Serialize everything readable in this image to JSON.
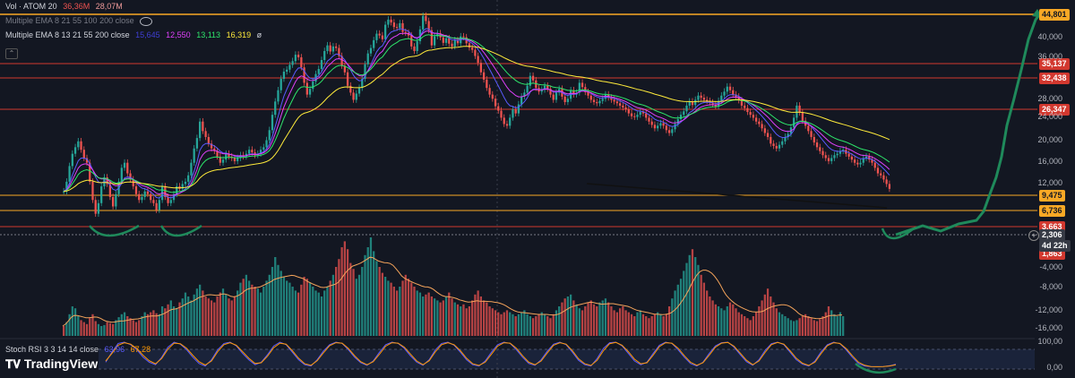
{
  "legend": {
    "vol_label": "Vol · ATOM 20",
    "vol_v1": "36,36M",
    "vol_v2": "28,07M",
    "ema1_label": "Multiple EMA 8 21 55 100 200 close",
    "ema2_label": "Multiple EMA 8 13 21 55 200 close",
    "ema2_v1": "15,645",
    "ema2_v2": "12,550",
    "ema2_v3": "13,113",
    "ema2_v4": "16,319",
    "ema2_v5": "ø",
    "stoch_label": "Stoch RSI 3 3 14 14 close",
    "stoch_k": "63,96",
    "stoch_d": "67,28"
  },
  "brand": "TradingView",
  "circle_button": "+",
  "colors": {
    "up": "#26a69a",
    "down": "#ef5350",
    "ema_fast": "#5b5bff",
    "ema_mid": "#e040fb",
    "ema_slow": "#2ee66b",
    "ema_long": "#ffeb3b",
    "hline_red": "#d2382f",
    "hline_orange": "#f9a825",
    "projection": "#1f8a5b"
  },
  "price_levels": [
    {
      "value": "44,801",
      "color": "#f9a825",
      "text_color": "#131722",
      "kind": "orange"
    },
    {
      "value": "35,137",
      "color": "#d2382f",
      "text_color": "#ffffff",
      "kind": "red"
    },
    {
      "value": "32,438",
      "color": "#d2382f",
      "text_color": "#ffffff",
      "kind": "red"
    },
    {
      "value": "26,347",
      "color": "#d2382f",
      "text_color": "#ffffff",
      "kind": "red"
    },
    {
      "value": "9,475",
      "color": "#f9a825",
      "text_color": "#131722",
      "kind": "orange"
    },
    {
      "value": "6,736",
      "color": "#f9a825",
      "text_color": "#131722",
      "kind": "orange"
    },
    {
      "value": "3,663",
      "color": "#d2382f",
      "text_color": "#ffffff",
      "kind": "red"
    },
    {
      "value": "2,306",
      "color": "#363a45",
      "text_color": "#ffffff",
      "kind": "current"
    },
    {
      "value": "1,863",
      "color": "#d2382f",
      "text_color": "#ffffff",
      "kind": "red"
    }
  ],
  "countdown": "4d 22h",
  "price_ticks": [
    "40,000",
    "36,000",
    "28,000",
    "24,000",
    "20,000",
    "16,000",
    "12,000"
  ],
  "volume_ticks": [
    "-4,000",
    "-8,000",
    "-12,000",
    "-16,000"
  ],
  "rsi_ticks": [
    "100,00",
    "0,00"
  ],
  "chart_data": {
    "type": "line",
    "title": "ATOM",
    "price_series": [
      2.2,
      2.6,
      3.4,
      4.2,
      4.7,
      5.2,
      4.5,
      3.9,
      3.6,
      2.6,
      1.9,
      1.5,
      1.8,
      2.4,
      2.8,
      2.5,
      2.0,
      1.7,
      2.1,
      2.6,
      3.3,
      3.6,
      3.0,
      2.7,
      2.4,
      2.1,
      1.9,
      2.0,
      2.2,
      2.1,
      1.9,
      1.8,
      1.6,
      1.9,
      2.4,
      2.0,
      1.8,
      1.9,
      2.1,
      2.4,
      2.3,
      2.5,
      2.6,
      2.9,
      3.6,
      4.6,
      5.5,
      7.3,
      6.2,
      5.6,
      5.0,
      4.6,
      4.4,
      4.0,
      3.6,
      3.8,
      4.2,
      4.0,
      3.9,
      3.7,
      3.9,
      4.1,
      4.0,
      4.2,
      4.5,
      4.3,
      4.1,
      4.2,
      4.5,
      4.7,
      5.3,
      6.3,
      8.2,
      10.3,
      12.5,
      15.2,
      17.2,
      17.8,
      19.3,
      20.6,
      23.0,
      22.0,
      18.5,
      14.2,
      11.6,
      12.8,
      14.5,
      16.5,
      18.0,
      21.0,
      24.5,
      27.0,
      24.3,
      26.5,
      25.8,
      22.5,
      19.0,
      17.0,
      13.5,
      12.0,
      10.6,
      11.8,
      13.0,
      15.2,
      19.5,
      23.5,
      25.8,
      29.5,
      33.0,
      32.0,
      30.0,
      38.5,
      42.0,
      40.0,
      37.0,
      36.5,
      39.5,
      34.0,
      33.5,
      32.0,
      26.5,
      24.5,
      29.0,
      35.5,
      44.8,
      41.0,
      35.0,
      27.0,
      31.5,
      33.2,
      31.0,
      28.2,
      30.5,
      27.8,
      26.5,
      29.5,
      28.0,
      31.5,
      31.0,
      28.0,
      26.0,
      25.0,
      22.5,
      20.0,
      17.0,
      15.0,
      13.0,
      11.6,
      10.8,
      9.5,
      8.8,
      7.8,
      7.0,
      6.8,
      7.8,
      9.0,
      8.4,
      9.8,
      11.2,
      12.0,
      13.5,
      16.0,
      14.8,
      13.0,
      12.2,
      12.6,
      13.5,
      12.8,
      11.6,
      10.6,
      12.0,
      12.8,
      11.2,
      10.2,
      10.8,
      12.5,
      11.6,
      12.0,
      14.2,
      13.2,
      12.1,
      11.4,
      10.6,
      10.2,
      10.0,
      10.4,
      10.8,
      11.6,
      11.0,
      10.6,
      10.3,
      10.0,
      9.6,
      9.3,
      9.0,
      8.4,
      8.0,
      7.9,
      8.2,
      8.6,
      8.4,
      7.8,
      7.3,
      6.9,
      6.5,
      6.8,
      7.1,
      6.8,
      6.3,
      6.0,
      6.4,
      7.0,
      7.6,
      8.2,
      8.7,
      9.6,
      10.3,
      9.7,
      10.6,
      11.4,
      11.0,
      10.6,
      10.4,
      10.1,
      9.8,
      9.5,
      10.4,
      11.4,
      12.2,
      13.3,
      12.5,
      11.6,
      11.2,
      10.5,
      9.6,
      9.2,
      8.6,
      8.2,
      7.8,
      7.3,
      7.0,
      6.5,
      6.0,
      5.6,
      5.0,
      4.8,
      4.6,
      4.9,
      5.2,
      5.6,
      5.9,
      6.6,
      7.8,
      9.6,
      8.5,
      7.4,
      6.8,
      6.2,
      5.6,
      5.1,
      4.7,
      4.4,
      4.1,
      3.9,
      3.7,
      3.9,
      4.1,
      4.2,
      4.4,
      4.5,
      4.2,
      4.0,
      3.8,
      3.6,
      3.5,
      3.6,
      3.9,
      4.0,
      3.8,
      3.6,
      3.3,
      3.0,
      2.9,
      2.7,
      2.5,
      2.3
    ],
    "volume_series": [
      0.1,
      0.14,
      0.22,
      0.3,
      0.28,
      0.2,
      0.16,
      0.14,
      0.12,
      0.18,
      0.22,
      0.15,
      0.12,
      0.1,
      0.11,
      0.14,
      0.13,
      0.12,
      0.16,
      0.19,
      0.22,
      0.24,
      0.2,
      0.18,
      0.16,
      0.14,
      0.16,
      0.2,
      0.24,
      0.22,
      0.24,
      0.26,
      0.23,
      0.22,
      0.3,
      0.28,
      0.32,
      0.36,
      0.3,
      0.28,
      0.34,
      0.38,
      0.44,
      0.4,
      0.36,
      0.42,
      0.48,
      0.52,
      0.46,
      0.4,
      0.38,
      0.36,
      0.34,
      0.4,
      0.44,
      0.48,
      0.42,
      0.38,
      0.36,
      0.4,
      0.46,
      0.54,
      0.58,
      0.62,
      0.56,
      0.52,
      0.5,
      0.48,
      0.44,
      0.5,
      0.56,
      0.62,
      0.7,
      0.8,
      0.72,
      0.66,
      0.6,
      0.56,
      0.54,
      0.5,
      0.46,
      0.44,
      0.52,
      0.6,
      0.58,
      0.54,
      0.5,
      0.46,
      0.44,
      0.4,
      0.46,
      0.5,
      0.56,
      0.62,
      0.7,
      0.78,
      0.9,
      0.96,
      0.88,
      0.74,
      0.68,
      0.58,
      0.62,
      0.7,
      0.82,
      0.9,
      1.0,
      0.86,
      0.76,
      0.7,
      0.64,
      0.6,
      0.56,
      0.54,
      0.5,
      0.46,
      0.5,
      0.56,
      0.62,
      0.58,
      0.54,
      0.5,
      0.46,
      0.44,
      0.4,
      0.42,
      0.44,
      0.4,
      0.38,
      0.36,
      0.34,
      0.36,
      0.4,
      0.44,
      0.38,
      0.34,
      0.32,
      0.3,
      0.32,
      0.28,
      0.3,
      0.36,
      0.42,
      0.46,
      0.4,
      0.36,
      0.34,
      0.3,
      0.28,
      0.26,
      0.24,
      0.22,
      0.24,
      0.26,
      0.24,
      0.22,
      0.2,
      0.22,
      0.24,
      0.26,
      0.22,
      0.2,
      0.18,
      0.2,
      0.22,
      0.24,
      0.22,
      0.2,
      0.18,
      0.22,
      0.26,
      0.3,
      0.34,
      0.38,
      0.4,
      0.42,
      0.36,
      0.32,
      0.28,
      0.26,
      0.3,
      0.34,
      0.36,
      0.32,
      0.3,
      0.34,
      0.36,
      0.38,
      0.34,
      0.3,
      0.26,
      0.24,
      0.28,
      0.3,
      0.26,
      0.24,
      0.22,
      0.2,
      0.24,
      0.26,
      0.22,
      0.2,
      0.18,
      0.2,
      0.22,
      0.24,
      0.22,
      0.2,
      0.22,
      0.3,
      0.38,
      0.46,
      0.52,
      0.58,
      0.66,
      0.74,
      0.82,
      0.88,
      0.8,
      0.72,
      0.62,
      0.54,
      0.46,
      0.4,
      0.36,
      0.32,
      0.3,
      0.28,
      0.26,
      0.3,
      0.34,
      0.32,
      0.28,
      0.24,
      0.22,
      0.2,
      0.18,
      0.16,
      0.2,
      0.24,
      0.3,
      0.36,
      0.42,
      0.48,
      0.4,
      0.34,
      0.28,
      0.24,
      0.22,
      0.2,
      0.18,
      0.16,
      0.15,
      0.16,
      0.18,
      0.2,
      0.22,
      0.2,
      0.18,
      0.16,
      0.15,
      0.17,
      0.2,
      0.24,
      0.3,
      0.26,
      0.22,
      0.2,
      0.24,
      0.2
    ],
    "stoch_k": [
      20,
      60,
      95,
      100,
      90,
      70,
      40,
      20,
      10,
      40,
      80,
      100,
      92,
      70,
      40,
      15,
      5,
      30,
      70,
      95,
      100,
      85,
      55,
      30,
      10,
      20,
      50,
      85,
      100,
      90,
      60,
      30,
      10,
      5,
      30,
      65,
      90,
      100,
      95,
      70,
      40,
      18,
      8,
      25,
      60,
      90,
      100,
      95,
      75,
      45,
      20,
      8,
      30,
      70,
      95,
      100,
      88,
      60,
      30,
      10,
      5,
      25,
      60,
      90,
      100,
      95,
      70,
      40,
      15,
      8,
      30,
      65,
      92,
      100,
      90,
      60,
      28,
      10,
      5,
      35,
      75,
      98,
      100,
      85,
      55,
      25,
      10,
      20,
      55,
      88,
      100,
      95,
      70,
      40,
      15,
      5,
      20,
      55,
      85,
      98,
      100,
      80,
      50,
      22,
      8,
      30,
      68,
      94,
      100,
      90,
      60,
      30,
      12,
      5,
      25,
      62,
      90,
      100,
      94,
      70,
      40,
      15,
      5,
      2,
      2,
      3,
      6,
      12
    ],
    "stoch_d": [
      25,
      55,
      88,
      98,
      92,
      75,
      48,
      26,
      14,
      35,
      72,
      96,
      94,
      76,
      48,
      22,
      9,
      25,
      62,
      90,
      98,
      88,
      62,
      36,
      15,
      18,
      44,
      78,
      96,
      92,
      66,
      36,
      14,
      8,
      26,
      58,
      86,
      98,
      96,
      75,
      46,
      22,
      10,
      22,
      52,
      84,
      98,
      96,
      80,
      52,
      25,
      10,
      26,
      62,
      90,
      98,
      90,
      66,
      36,
      14,
      7,
      20,
      52,
      84,
      98,
      96,
      76,
      46,
      20,
      10,
      25,
      58,
      88,
      98,
      92,
      66,
      34,
      14,
      7,
      28,
      66,
      94,
      99,
      88,
      62,
      32,
      14,
      18,
      48,
      82,
      98,
      96,
      76,
      46,
      20,
      8,
      18,
      48,
      80,
      96,
      99,
      84,
      56,
      28,
      10,
      25,
      60,
      90,
      99,
      92,
      66,
      36,
      16,
      7,
      20,
      55,
      86,
      98,
      95,
      75,
      46,
      20,
      8,
      3,
      2,
      3,
      5,
      10
    ],
    "projection": [
      [
        1000,
        262
      ],
      [
        1030,
        252
      ],
      [
        1050,
        258
      ],
      [
        1070,
        250
      ],
      [
        1090,
        246
      ],
      [
        1098,
        236
      ],
      [
        1106,
        214
      ],
      [
        1112,
        198
      ],
      [
        1118,
        175
      ],
      [
        1124,
        140
      ],
      [
        1132,
        110
      ],
      [
        1140,
        78
      ],
      [
        1148,
        44
      ],
      [
        1156,
        22
      ],
      [
        1162,
        14
      ]
    ],
    "price_scale": {
      "min": 1.0,
      "max": 46.0,
      "log": true
    },
    "grid": false,
    "legend_position": "top-left"
  }
}
